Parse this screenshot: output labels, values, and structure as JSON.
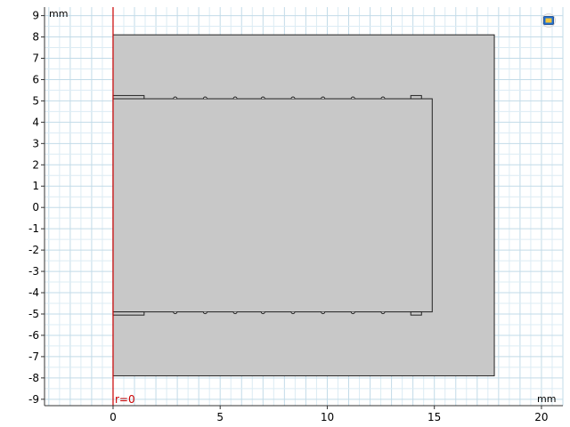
{
  "view": {
    "x_unit": "mm",
    "y_unit": "mm",
    "x_range": [
      -3.2,
      21
    ],
    "y_range": [
      -9.3,
      9.4
    ],
    "x_ticks": [
      0,
      5,
      10,
      15,
      20
    ],
    "y_ticks": [
      9,
      8,
      7,
      6,
      5,
      4,
      3,
      2,
      1,
      0,
      -1,
      -2,
      -3,
      -4,
      -5,
      -6,
      -7,
      -8,
      -9
    ],
    "grid_minor_step": 0.5,
    "grid_major_step": 1,
    "symmetry_axis_label": "r=0",
    "symmetry_axis_r": 0,
    "colors": {
      "background": "#ffffff",
      "grid_minor": "#dcecf4",
      "grid_major": "#c2dbe8",
      "domain_fill": "#c8c8c8",
      "domain_stroke": "#222222",
      "axis_line": "#cc0000"
    }
  },
  "geometry": {
    "outer": {
      "r": [
        0,
        17.8
      ],
      "z": [
        -7.9,
        8.1
      ]
    },
    "inner": {
      "r": [
        0,
        14.9
      ],
      "z": [
        -4.9,
        5.1
      ]
    },
    "top_tab_left": {
      "r": [
        0,
        1.45
      ],
      "z": [
        5.1,
        5.25
      ]
    },
    "top_tab_right": {
      "r": [
        13.9,
        14.4
      ],
      "z": [
        5.1,
        5.25
      ]
    },
    "bottom_tab_left": {
      "r": [
        0,
        1.45
      ],
      "z": [
        -5.05,
        -4.9
      ]
    },
    "bottom_tab_right": {
      "r": [
        13.9,
        14.4
      ],
      "z": [
        -5.05,
        -4.9
      ]
    },
    "bumps_r": [
      2.9,
      4.3,
      5.7,
      7.0,
      8.4,
      9.8,
      11.2,
      12.6
    ]
  },
  "toolbar": {
    "icon": "zoom-extents-icon"
  }
}
